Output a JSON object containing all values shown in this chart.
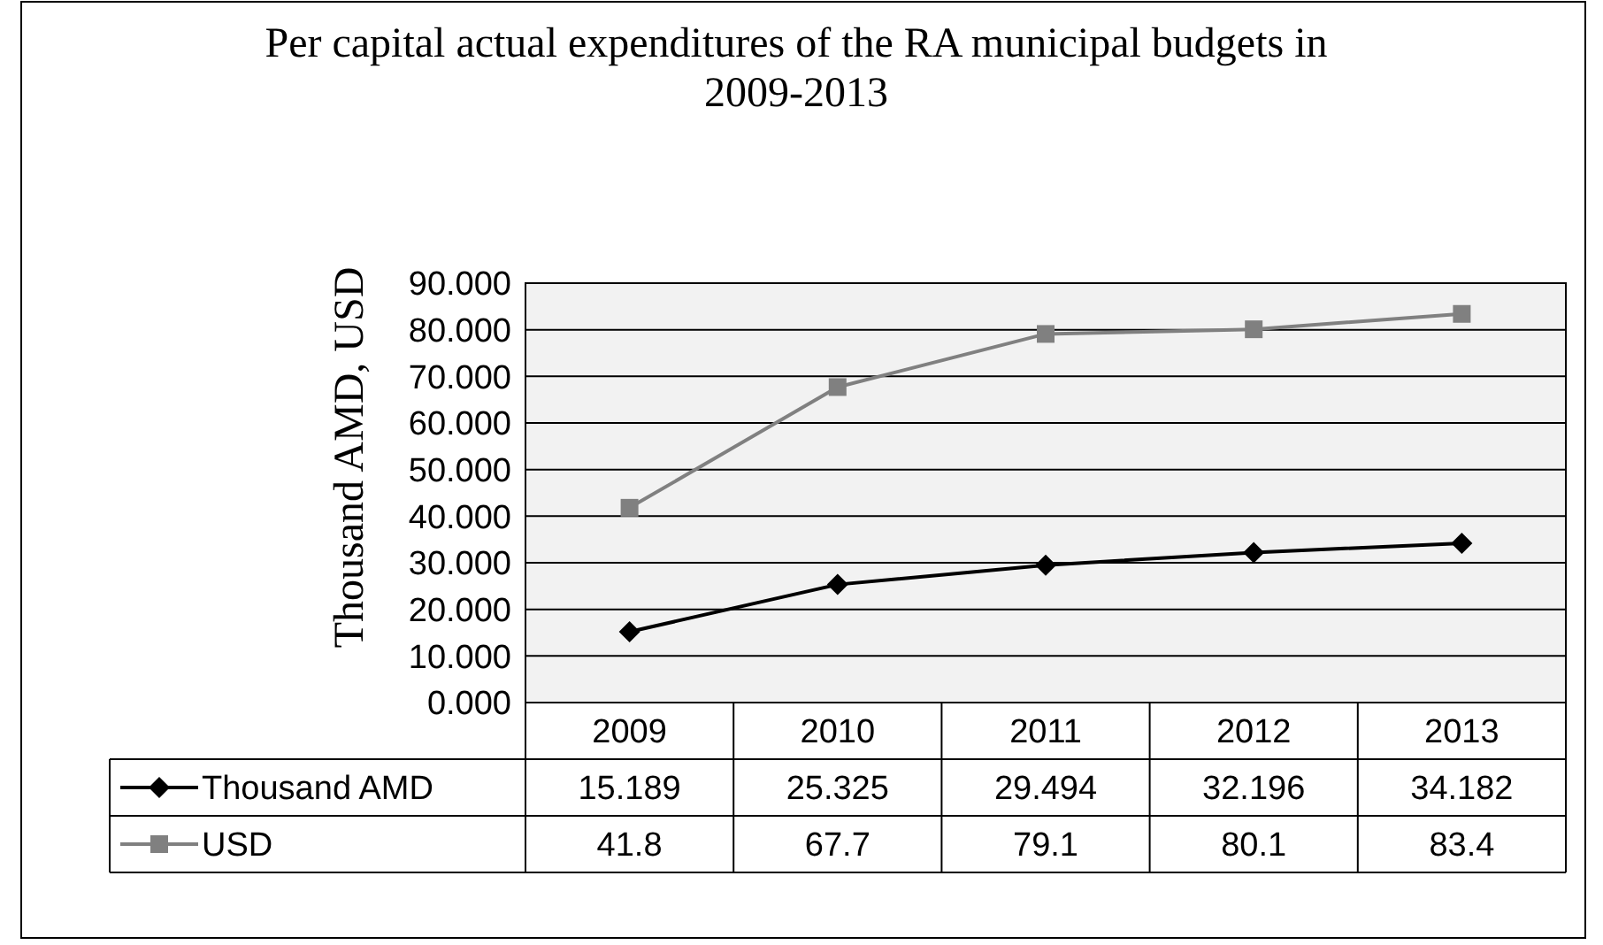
{
  "chart_data": {
    "type": "line",
    "title": "Per capital actual expenditures of the RA municipal budgets in 2009-2013",
    "ylabel": "Thousand AMD, USD",
    "categories": [
      "2009",
      "2010",
      "2011",
      "2012",
      "2013"
    ],
    "series": [
      {
        "name": "Thousand AMD",
        "color": "#000000",
        "marker": "diamond",
        "values": [
          15.189,
          25.325,
          29.494,
          32.196,
          34.182
        ]
      },
      {
        "name": "USD",
        "color": "#808080",
        "marker": "square",
        "values": [
          41.8,
          67.7,
          79.1,
          80.1,
          83.4
        ]
      }
    ],
    "ylim": [
      0,
      90
    ],
    "yticks": [
      {
        "value": 0,
        "label": "0.000"
      },
      {
        "value": 10,
        "label": "10.000"
      },
      {
        "value": 20,
        "label": "20.000"
      },
      {
        "value": 30,
        "label": "30.000"
      },
      {
        "value": 40,
        "label": "40.000"
      },
      {
        "value": 50,
        "label": "50.000"
      },
      {
        "value": 60,
        "label": "60.000"
      },
      {
        "value": 70,
        "label": "70.000"
      },
      {
        "value": 80,
        "label": "80.000"
      },
      {
        "value": 90,
        "label": "90.000"
      }
    ],
    "grid": "y",
    "legend": "bottom left",
    "data_labels": true,
    "line_style": "solid"
  }
}
